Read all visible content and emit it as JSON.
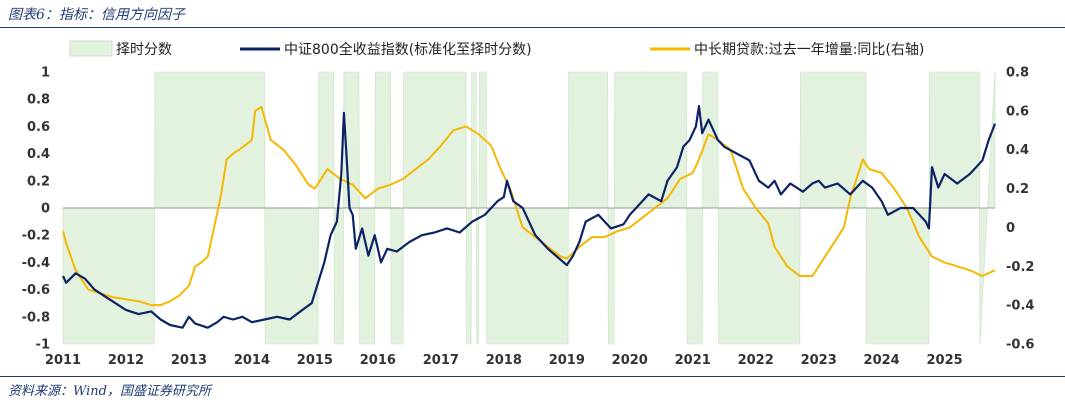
{
  "figure_title": "图表6：指标：信用方向因子",
  "source": "资料来源：Wind，国盛证券研究所",
  "chart_data": {
    "type": "line",
    "title": "",
    "legend_position": "top",
    "colors": {
      "shade": "#e3f1df",
      "index": "#0d2366",
      "loan": "#f5b800"
    },
    "left_axis": {
      "range": [
        -1,
        1
      ],
      "ticks": [
        "1",
        "0.8",
        "0.6",
        "0.4",
        "0.2",
        "0",
        "-0.2",
        "-0.4",
        "-0.6",
        "-0.8",
        "-1"
      ]
    },
    "right_axis": {
      "range": [
        -0.6,
        0.8
      ],
      "ticks": [
        "0.8",
        "0.6",
        "0.4",
        "0.2",
        "0",
        "-0.2",
        "-0.4",
        "-0.6"
      ]
    },
    "x_axis": {
      "range": [
        2011.0,
        2025.8
      ],
      "ticks": [
        "2011",
        "2012",
        "2013",
        "2014",
        "2015",
        "2016",
        "2017",
        "2018",
        "2019",
        "2020",
        "2021",
        "2022",
        "2023",
        "2024",
        "2025"
      ]
    },
    "series": [
      {
        "name": "择时分数",
        "type": "area",
        "axis": "left",
        "x": [
          2011.0,
          2012.45,
          2012.46,
          2014.2,
          2014.21,
          2015.05,
          2015.06,
          2015.3,
          2015.31,
          2015.45,
          2015.46,
          2015.7,
          2015.71,
          2015.95,
          2015.96,
          2016.2,
          2016.21,
          2016.4,
          2016.41,
          2017.4,
          2017.41,
          2017.48,
          2017.49,
          2017.56,
          2017.57,
          2017.6,
          2017.61,
          2017.72,
          2017.73,
          2019.02,
          2019.03,
          2019.65,
          2019.66,
          2019.75,
          2019.76,
          2020.9,
          2020.91,
          2021.15,
          2021.16,
          2021.4,
          2021.41,
          2022.7,
          2022.71,
          2023.75,
          2023.76,
          2024.75,
          2024.76,
          2025.55,
          2025.56,
          2025.8
        ],
        "values": [
          -1,
          -1,
          1,
          1,
          -1,
          -1,
          1,
          1,
          -1,
          -1,
          1,
          1,
          -1,
          -1,
          1,
          1,
          -1,
          -1,
          1,
          1,
          -1,
          -1,
          1,
          1,
          -1,
          -1,
          1,
          1,
          -1,
          -1,
          1,
          1,
          -1,
          -1,
          1,
          1,
          -1,
          -1,
          1,
          1,
          -1,
          -1,
          1,
          1,
          -1,
          -1,
          1,
          1,
          -1,
          1
        ]
      },
      {
        "name": "中证800全收益指数(标准化至择时分数)",
        "type": "line",
        "axis": "left",
        "x": [
          2011.0,
          2011.05,
          2011.2,
          2011.35,
          2011.5,
          2011.7,
          2011.9,
          2012.0,
          2012.2,
          2012.4,
          2012.55,
          2012.7,
          2012.9,
          2013.0,
          2013.1,
          2013.3,
          2013.45,
          2013.55,
          2013.7,
          2013.85,
          2014.0,
          2014.2,
          2014.4,
          2014.6,
          2014.8,
          2014.95,
          2015.05,
          2015.15,
          2015.25,
          2015.35,
          2015.42,
          2015.46,
          2015.5,
          2015.55,
          2015.6,
          2015.65,
          2015.75,
          2015.85,
          2015.95,
          2016.0,
          2016.05,
          2016.15,
          2016.3,
          2016.5,
          2016.7,
          2016.9,
          2017.1,
          2017.3,
          2017.5,
          2017.7,
          2017.9,
          2018.0,
          2018.05,
          2018.15,
          2018.3,
          2018.5,
          2018.7,
          2018.9,
          2019.0,
          2019.1,
          2019.2,
          2019.3,
          2019.5,
          2019.7,
          2019.9,
          2020.0,
          2020.1,
          2020.3,
          2020.5,
          2020.6,
          2020.75,
          2020.85,
          2020.95,
          2021.05,
          2021.1,
          2021.15,
          2021.25,
          2021.4,
          2021.5,
          2021.7,
          2021.9,
          2022.05,
          2022.2,
          2022.3,
          2022.4,
          2022.55,
          2022.75,
          2022.9,
          2023.0,
          2023.1,
          2023.3,
          2023.5,
          2023.7,
          2023.85,
          2024.0,
          2024.1,
          2024.3,
          2024.5,
          2024.6,
          2024.7,
          2024.75,
          2024.8,
          2024.9,
          2025.0,
          2025.2,
          2025.4,
          2025.5,
          2025.6,
          2025.7,
          2025.8
        ],
        "values": [
          -0.5,
          -0.55,
          -0.48,
          -0.52,
          -0.6,
          -0.66,
          -0.72,
          -0.75,
          -0.78,
          -0.76,
          -0.82,
          -0.86,
          -0.88,
          -0.8,
          -0.85,
          -0.88,
          -0.84,
          -0.8,
          -0.82,
          -0.8,
          -0.84,
          -0.82,
          -0.8,
          -0.82,
          -0.75,
          -0.7,
          -0.55,
          -0.4,
          -0.2,
          -0.1,
          0.25,
          0.7,
          0.4,
          0.0,
          -0.05,
          -0.3,
          -0.15,
          -0.35,
          -0.2,
          -0.3,
          -0.4,
          -0.3,
          -0.32,
          -0.25,
          -0.2,
          -0.18,
          -0.15,
          -0.18,
          -0.1,
          -0.05,
          0.05,
          0.08,
          0.2,
          0.05,
          0.0,
          -0.2,
          -0.3,
          -0.38,
          -0.42,
          -0.35,
          -0.25,
          -0.1,
          -0.05,
          -0.15,
          -0.12,
          -0.05,
          0.0,
          0.1,
          0.05,
          0.2,
          0.3,
          0.45,
          0.5,
          0.6,
          0.75,
          0.55,
          0.65,
          0.5,
          0.45,
          0.4,
          0.35,
          0.2,
          0.15,
          0.2,
          0.1,
          0.18,
          0.12,
          0.18,
          0.2,
          0.15,
          0.18,
          0.1,
          0.2,
          0.15,
          0.05,
          -0.05,
          0.0,
          0.0,
          -0.05,
          -0.1,
          -0.15,
          0.3,
          0.15,
          0.25,
          0.18,
          0.25,
          0.3,
          0.35,
          0.5,
          0.62
        ]
      },
      {
        "name": "中长期贷款:过去一年增量:同比(右轴)",
        "type": "line",
        "axis": "right",
        "x": [
          2011.0,
          2011.05,
          2011.2,
          2011.4,
          2011.6,
          2011.8,
          2012.0,
          2012.2,
          2012.4,
          2012.55,
          2012.7,
          2012.85,
          2013.0,
          2013.1,
          2013.2,
          2013.3,
          2013.4,
          2013.5,
          2013.6,
          2013.7,
          2013.8,
          2014.0,
          2014.05,
          2014.15,
          2014.3,
          2014.5,
          2014.7,
          2014.9,
          2015.0,
          2015.2,
          2015.4,
          2015.6,
          2015.8,
          2016.0,
          2016.2,
          2016.4,
          2016.6,
          2016.8,
          2017.0,
          2017.2,
          2017.4,
          2017.6,
          2017.8,
          2017.95,
          2018.1,
          2018.2,
          2018.3,
          2018.5,
          2018.7,
          2018.9,
          2019.0,
          2019.2,
          2019.4,
          2019.6,
          2019.8,
          2020.0,
          2020.2,
          2020.4,
          2020.6,
          2020.8,
          2021.0,
          2021.1,
          2021.25,
          2021.4,
          2021.6,
          2021.7,
          2021.8,
          2022.0,
          2022.2,
          2022.3,
          2022.5,
          2022.7,
          2022.9,
          2023.0,
          2023.2,
          2023.4,
          2023.5,
          2023.6,
          2023.7,
          2023.8,
          2024.0,
          2024.2,
          2024.4,
          2024.6,
          2024.8,
          2025.0,
          2025.2,
          2025.4,
          2025.6,
          2025.8
        ],
        "values": [
          -0.02,
          -0.08,
          -0.22,
          -0.32,
          -0.34,
          -0.36,
          -0.37,
          -0.38,
          -0.4,
          -0.4,
          -0.38,
          -0.35,
          -0.3,
          -0.2,
          -0.18,
          -0.15,
          0.0,
          0.15,
          0.35,
          0.38,
          0.4,
          0.45,
          0.6,
          0.62,
          0.45,
          0.4,
          0.32,
          0.22,
          0.2,
          0.3,
          0.25,
          0.22,
          0.15,
          0.2,
          0.22,
          0.25,
          0.3,
          0.35,
          0.42,
          0.5,
          0.52,
          0.48,
          0.42,
          0.3,
          0.2,
          0.1,
          0.0,
          -0.05,
          -0.1,
          -0.15,
          -0.16,
          -0.1,
          -0.05,
          -0.05,
          -0.02,
          0.0,
          0.05,
          0.1,
          0.15,
          0.25,
          0.28,
          0.35,
          0.48,
          0.45,
          0.4,
          0.3,
          0.2,
          0.1,
          0.02,
          -0.1,
          -0.2,
          -0.25,
          -0.25,
          -0.2,
          -0.1,
          0.0,
          0.15,
          0.25,
          0.35,
          0.3,
          0.28,
          0.2,
          0.1,
          -0.05,
          -0.15,
          -0.18,
          -0.2,
          -0.22,
          -0.25,
          -0.22
        ]
      }
    ]
  }
}
